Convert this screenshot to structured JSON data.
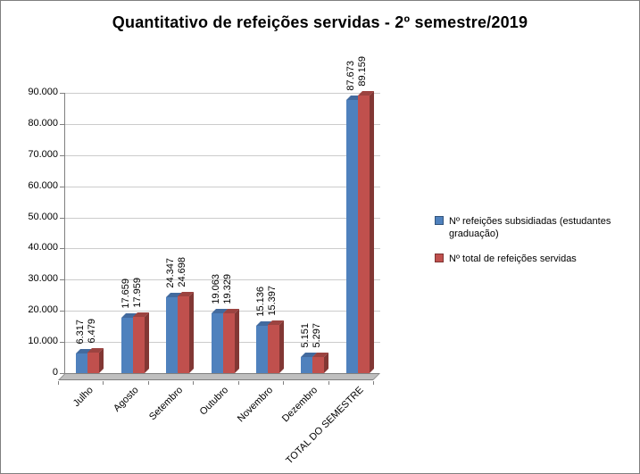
{
  "title": "Quantitativo de refeições servidas - 2º semestre/2019",
  "chart_data": {
    "type": "bar",
    "style": "3d-clustered-column",
    "title": "Quantitativo de refeições servidas - 2º semestre/2019",
    "categories": [
      "Julho",
      "Agosto",
      "Setembro",
      "Outubro",
      "Novembro",
      "Dezembro",
      "TOTAL DO SEMESTRE"
    ],
    "series": [
      {
        "name": "Nº refeições subsidiadas (estudantes graduação)",
        "color": "#4f81bd",
        "color_top": "#426a9e",
        "color_side": "#35547f",
        "values": [
          6317,
          17659,
          24347,
          19063,
          15136,
          5151,
          87673
        ]
      },
      {
        "name": "Nº total  de refeições servidas",
        "color": "#c0504d",
        "color_top": "#9c4340",
        "color_side": "#823734",
        "values": [
          6479,
          17959,
          24698,
          19329,
          15397,
          5297,
          89159
        ]
      }
    ],
    "value_labels": [
      [
        "6.317",
        "6.479"
      ],
      [
        "17.659",
        "17.959"
      ],
      [
        "24.347",
        "24.698"
      ],
      [
        "19.063",
        "19.329"
      ],
      [
        "15.136",
        "15.397"
      ],
      [
        "5.151",
        "5.297"
      ],
      [
        "87.673",
        "89.159"
      ]
    ],
    "xlabel": "",
    "ylabel": "",
    "ylim": [
      0,
      90000
    ],
    "ytick_step": 10000,
    "ytick_labels": [
      "0",
      "10.000",
      "20.000",
      "30.000",
      "40.000",
      "50.000",
      "60.000",
      "70.000",
      "80.000",
      "90.000"
    ],
    "grid": true,
    "legend_position": "right",
    "colors": {
      "gridline": "#cccccc",
      "axis": "#808080",
      "floor": "#bfbfbf",
      "background": "#ffffff"
    }
  }
}
